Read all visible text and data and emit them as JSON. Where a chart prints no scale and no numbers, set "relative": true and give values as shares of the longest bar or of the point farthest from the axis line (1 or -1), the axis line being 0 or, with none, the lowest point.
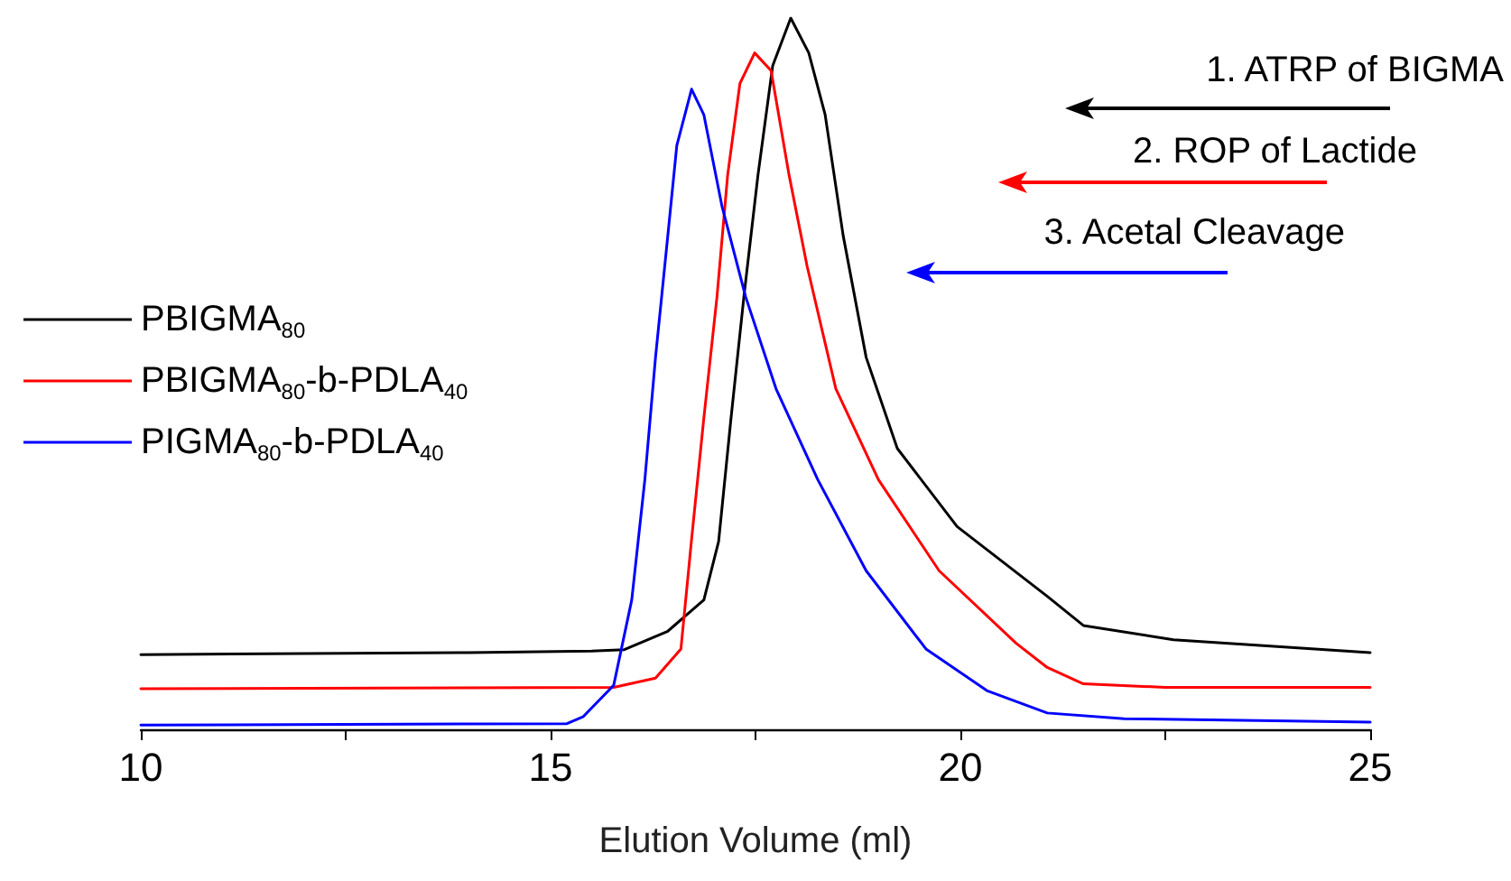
{
  "chart_data": {
    "type": "line",
    "relative": true,
    "xlabel": "Elution Volume (ml)",
    "xlim": [
      10,
      25
    ],
    "xticks": [
      10,
      {
        "value": 12.5,
        "label": null
      },
      15,
      {
        "value": 17.5,
        "label": null
      },
      20,
      {
        "value": 22.5,
        "label": null
      },
      25
    ],
    "grid": false,
    "legend": "left",
    "marker": "none",
    "line_style": "solid",
    "annotations": [
      "1. ATRP of BIGMA",
      "2. ROP of Lactide",
      "3. Acetal Cleavage"
    ],
    "series": [
      {
        "name": "PBIGMA$_{80}$",
        "color": "#000000",
        "x": [
          10,
          14,
          15.5,
          15.9,
          16.43,
          16.87,
          17.05,
          17.2,
          17.36,
          17.53,
          17.71,
          17.93,
          18.15,
          18.35,
          18.57,
          18.85,
          19.23,
          19.96,
          21.06,
          21.5,
          22.6,
          25
        ],
        "values": [
          0.105,
          0.108,
          0.11,
          0.112,
          0.138,
          0.182,
          0.264,
          0.436,
          0.61,
          0.779,
          0.933,
          1.0,
          0.951,
          0.864,
          0.694,
          0.523,
          0.395,
          0.285,
          0.187,
          0.146,
          0.126,
          0.108
        ]
      },
      {
        "name": "PBIGMA$_{80}$-b-PDLA$_{40}$",
        "color": "#ff0000",
        "x": [
          10,
          15.77,
          16.28,
          16.59,
          16.72,
          16.87,
          17.03,
          17.16,
          17.31,
          17.49,
          17.69,
          17.91,
          18.13,
          18.48,
          19.0,
          19.74,
          20.68,
          21.06,
          21.5,
          22.5,
          25
        ],
        "values": [
          0.057,
          0.059,
          0.072,
          0.113,
          0.267,
          0.438,
          0.608,
          0.779,
          0.908,
          0.951,
          0.926,
          0.779,
          0.651,
          0.479,
          0.351,
          0.223,
          0.121,
          0.087,
          0.064,
          0.059,
          0.059
        ]
      },
      {
        "name": "PIGMA$_{80}$-b-PDLA$_{40}$",
        "color": "#0000ff",
        "x": [
          10,
          15.2,
          15.4,
          15.77,
          15.99,
          16.15,
          16.28,
          16.43,
          16.54,
          16.72,
          16.87,
          17.09,
          17.38,
          17.75,
          18.26,
          18.85,
          19.58,
          20.33,
          21.06,
          22,
          25
        ],
        "values": [
          0.006,
          0.008,
          0.018,
          0.062,
          0.182,
          0.351,
          0.523,
          0.694,
          0.821,
          0.9,
          0.864,
          0.736,
          0.608,
          0.479,
          0.351,
          0.223,
          0.113,
          0.054,
          0.023,
          0.015,
          0.01
        ]
      }
    ]
  }
}
